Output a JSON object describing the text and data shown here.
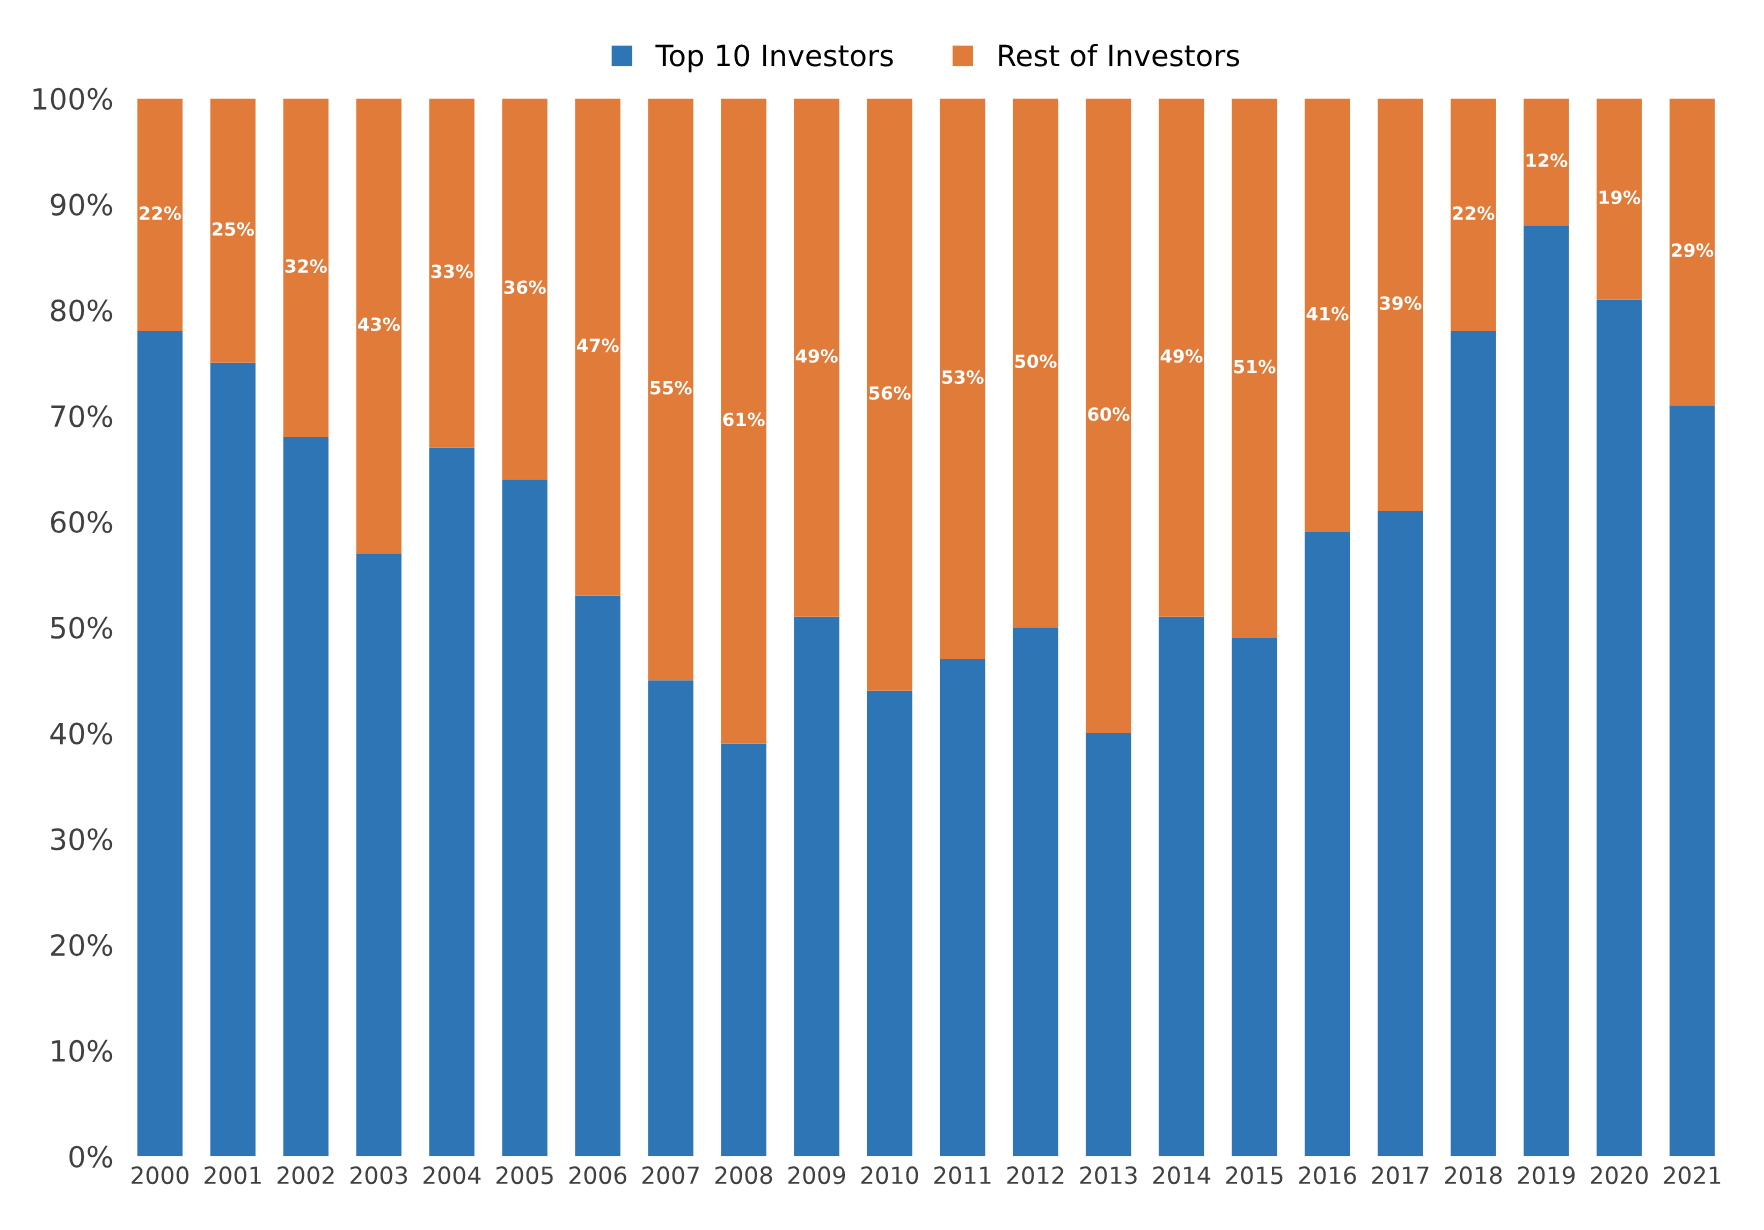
{
  "chart_data": {
    "type": "bar",
    "stacked": true,
    "legend": "top",
    "grid": false,
    "categories": [
      "2000",
      "2001",
      "2002",
      "2003",
      "2004",
      "2005",
      "2006",
      "2007",
      "2008",
      "2009",
      "2010",
      "2011",
      "2012",
      "2013",
      "2014",
      "2015",
      "2016",
      "2017",
      "2018",
      "2019",
      "2020",
      "2021"
    ],
    "ylim": [
      0,
      100
    ],
    "yticks": [
      {
        "value": 0,
        "label": "0%"
      },
      {
        "value": 10,
        "label": "10%"
      },
      {
        "value": 20,
        "label": "20%"
      },
      {
        "value": 30,
        "label": "30%"
      },
      {
        "value": 40,
        "label": "40%"
      },
      {
        "value": 50,
        "label": "50%"
      },
      {
        "value": 60,
        "label": "60%"
      },
      {
        "value": 70,
        "label": "70%"
      },
      {
        "value": 80,
        "label": "80%"
      },
      {
        "value": 90,
        "label": "90%"
      },
      {
        "value": 100,
        "label": "100%"
      }
    ],
    "series": [
      {
        "name": "Top 10 Investors",
        "color": "#2e75b6",
        "values": [
          78,
          75,
          68,
          57,
          67,
          64,
          53,
          45,
          39,
          51,
          44,
          47,
          50,
          40,
          51,
          49,
          59,
          61,
          78,
          88,
          81,
          71
        ]
      },
      {
        "name": "Rest of Investors",
        "color": "#e07b39",
        "values": [
          22,
          25,
          32,
          43,
          33,
          36,
          47,
          55,
          61,
          49,
          56,
          53,
          50,
          60,
          49,
          51,
          41,
          39,
          22,
          12,
          19,
          29
        ],
        "value_labels": [
          "22%",
          "25%",
          "32%",
          "43%",
          "33%",
          "36%",
          "47%",
          "55%",
          "61%",
          "49%",
          "56%",
          "53%",
          "50%",
          "60%",
          "49%",
          "51%",
          "41%",
          "39%",
          "22%",
          "12%",
          "19%",
          "29%"
        ]
      }
    ]
  }
}
